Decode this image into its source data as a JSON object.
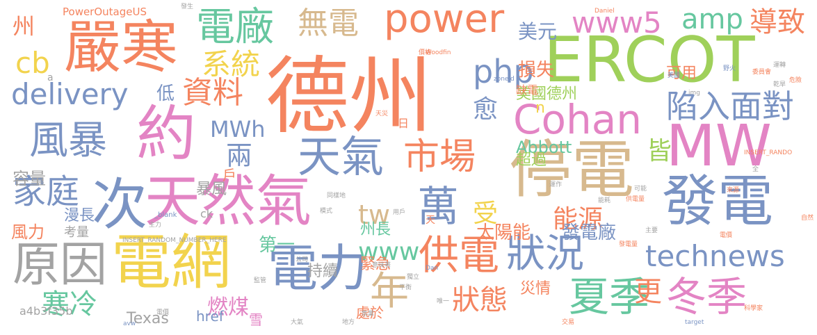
{
  "palette": {
    "salmon": "#f4845f",
    "tan": "#d7b98e",
    "lime": "#9fd05a",
    "steel": "#7a93c3",
    "gray": "#a3a3a3",
    "pink": "#e384c4",
    "mint": "#66c79f",
    "yellow": "#f2d34d"
  },
  "words": [
    "德州",
    "ERCOT",
    "停電",
    "發電",
    "MW",
    "嚴寒",
    "約",
    "次",
    "天然氣",
    "電網",
    "電力",
    "原因",
    "電廠",
    "風暴",
    "天氣",
    "市場",
    "萬",
    "供電",
    "狀況",
    "Cohan",
    "power",
    "年",
    "夏季",
    "冬季",
    "家庭",
    "delivery",
    "資料",
    "無電",
    "系統",
    "陷入",
    "面對",
    "technews",
    "www5",
    "amp",
    "導致",
    "php",
    "cb",
    "MWh",
    "兩",
    "tw",
    "受",
    "狀態",
    "能源",
    "www",
    "寒冷",
    "燃煤",
    "州",
    "容量",
    "更",
    "美元",
    "損失",
    "Abbott",
    "州長",
    "太陽能",
    "發電廠",
    "第一",
    "Texas",
    "愈",
    "皆",
    "可用",
    "低",
    "風力",
    "戶",
    "美國德州",
    "緊急",
    "持續",
    "災情",
    "漫長",
    "暴風",
    "超過",
    "a4b3f35b",
    "PowerOutageUS",
    "n",
    "處於",
    "href",
    "雪",
    "ck",
    "考量",
    "日",
    "缺電",
    "INSERT_RANDOM_NUMBER_HERE",
    "_blank",
    "Woodfin",
    "INSERT_RANDO",
    "Daniel",
    "zoneid",
    "img",
    "target",
    "科學家",
    "avw",
    "Dan",
    "a",
    "發生",
    "野火",
    "美國",
    "天",
    "天災",
    "主力",
    "公司",
    "平衡",
    "交易",
    "售業",
    "唯一",
    "地方",
    "大氣",
    "監管",
    "電價",
    "供電量",
    "發電量",
    "主要",
    "委員會",
    "乾旱",
    "價格",
    "運轉",
    "危險",
    "運作",
    "能耗",
    "電價",
    "獨立",
    "意味著",
    "模式",
    "用戶",
    "同樣地",
    "來源",
    "可能",
    "自然",
    "全",
    "未來"
  ]
}
